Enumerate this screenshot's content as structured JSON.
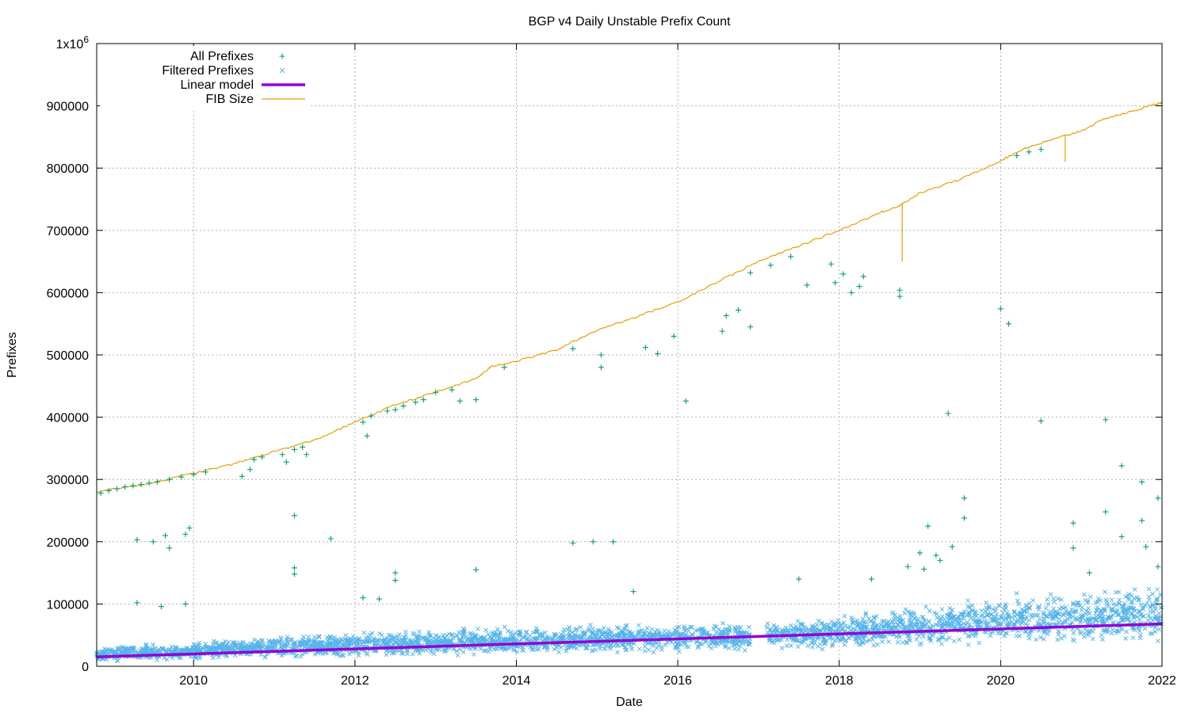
{
  "chart_data": {
    "type": "scatter",
    "title": "BGP v4 Daily Unstable Prefix Count",
    "xlabel": "Date",
    "ylabel": "Prefixes",
    "xlim": [
      2008.8,
      2022.0
    ],
    "ylim": [
      0,
      1000000
    ],
    "x_ticks": [
      2010,
      2012,
      2014,
      2016,
      2018,
      2020,
      2022
    ],
    "x_tick_labels": [
      "2010",
      "2012",
      "2014",
      "2016",
      "2018",
      "2020",
      "2022"
    ],
    "y_ticks": [
      0,
      100000,
      200000,
      300000,
      400000,
      500000,
      600000,
      700000,
      800000,
      900000,
      1000000
    ],
    "y_tick_labels": [
      "0",
      "100000",
      "200000",
      "300000",
      "400000",
      "500000",
      "600000",
      "700000",
      "800000",
      "900000",
      "1x10^6"
    ],
    "grid": true,
    "legend_position": "top-left",
    "series": [
      {
        "name": "All Prefixes",
        "kind": "scatter",
        "marker": "plus",
        "color": "#009e73",
        "points": [
          [
            2008.85,
            278000
          ],
          [
            2008.95,
            282000
          ],
          [
            2009.05,
            285000
          ],
          [
            2009.15,
            288000
          ],
          [
            2009.25,
            290000
          ],
          [
            2009.35,
            292000
          ],
          [
            2009.45,
            294000
          ],
          [
            2009.55,
            296000
          ],
          [
            2009.7,
            300000
          ],
          [
            2009.85,
            304000
          ],
          [
            2010.0,
            308000
          ],
          [
            2010.15,
            312000
          ],
          [
            2010.6,
            305000
          ],
          [
            2010.7,
            316000
          ],
          [
            2010.75,
            332000
          ],
          [
            2010.85,
            336000
          ],
          [
            2011.1,
            340000
          ],
          [
            2011.15,
            328000
          ],
          [
            2011.25,
            348000
          ],
          [
            2011.35,
            352000
          ],
          [
            2011.4,
            340000
          ],
          [
            2012.1,
            392000
          ],
          [
            2012.15,
            370000
          ],
          [
            2012.2,
            402000
          ],
          [
            2012.4,
            410000
          ],
          [
            2012.5,
            412000
          ],
          [
            2012.6,
            418000
          ],
          [
            2012.75,
            424000
          ],
          [
            2012.85,
            428000
          ],
          [
            2013.0,
            440000
          ],
          [
            2013.2,
            444000
          ],
          [
            2013.3,
            426000
          ],
          [
            2013.5,
            428000
          ],
          [
            2013.85,
            480000
          ],
          [
            2014.7,
            510000
          ],
          [
            2015.05,
            500000
          ],
          [
            2015.05,
            480000
          ],
          [
            2015.6,
            512000
          ],
          [
            2015.75,
            502000
          ],
          [
            2015.95,
            530000
          ],
          [
            2016.1,
            426000
          ],
          [
            2016.55,
            538000
          ],
          [
            2016.6,
            563000
          ],
          [
            2016.75,
            572000
          ],
          [
            2016.9,
            545000
          ],
          [
            2016.9,
            632000
          ],
          [
            2017.15,
            644000
          ],
          [
            2017.4,
            658000
          ],
          [
            2017.6,
            612000
          ],
          [
            2017.9,
            646000
          ],
          [
            2017.95,
            616000
          ],
          [
            2018.05,
            630000
          ],
          [
            2018.15,
            600000
          ],
          [
            2018.25,
            610000
          ],
          [
            2018.3,
            626000
          ],
          [
            2018.75,
            604000
          ],
          [
            2018.75,
            594000
          ],
          [
            2020.0,
            574000
          ],
          [
            2020.1,
            550000
          ],
          [
            2020.2,
            820000
          ],
          [
            2020.35,
            826000
          ],
          [
            2020.5,
            830000
          ],
          [
            2009.3,
            203000
          ],
          [
            2009.5,
            200000
          ],
          [
            2009.65,
            210000
          ],
          [
            2009.7,
            190000
          ],
          [
            2009.9,
            212000
          ],
          [
            2009.95,
            222000
          ],
          [
            2011.25,
            242000
          ],
          [
            2011.25,
            158000
          ],
          [
            2011.25,
            148000
          ],
          [
            2011.7,
            205000
          ],
          [
            2012.5,
            150000
          ],
          [
            2012.5,
            138000
          ],
          [
            2013.5,
            155000
          ],
          [
            2014.7,
            198000
          ],
          [
            2014.95,
            200000
          ],
          [
            2015.2,
            200000
          ],
          [
            2015.45,
            120000
          ],
          [
            2017.5,
            140000
          ],
          [
            2018.4,
            140000
          ],
          [
            2019.1,
            225000
          ],
          [
            2019.2,
            178000
          ],
          [
            2019.25,
            170000
          ],
          [
            2019.35,
            406000
          ],
          [
            2019.4,
            192000
          ],
          [
            2019.55,
            270000
          ],
          [
            2019.55,
            238000
          ],
          [
            2020.5,
            394000
          ],
          [
            2020.9,
            230000
          ],
          [
            2021.3,
            396000
          ],
          [
            2021.3,
            248000
          ],
          [
            2021.5,
            322000
          ],
          [
            2021.5,
            208000
          ],
          [
            2021.75,
            296000
          ],
          [
            2021.75,
            234000
          ],
          [
            2021.8,
            192000
          ],
          [
            2021.95,
            270000
          ],
          [
            2021.95,
            160000
          ],
          [
            2009.3,
            102000
          ],
          [
            2009.6,
            96000
          ],
          [
            2009.9,
            100000
          ],
          [
            2012.1,
            110000
          ],
          [
            2012.3,
            108000
          ],
          [
            2018.85,
            160000
          ],
          [
            2019.0,
            182000
          ],
          [
            2019.05,
            156000
          ],
          [
            2020.9,
            190000
          ],
          [
            2021.1,
            150000
          ]
        ]
      },
      {
        "name": "Filtered Prefixes",
        "kind": "scatter_band",
        "marker": "cross",
        "color": "#56b4e9",
        "band": [
          [
            2008.8,
            8000,
            30000
          ],
          [
            2010.0,
            10000,
            40000
          ],
          [
            2011.0,
            12000,
            48000
          ],
          [
            2012.0,
            14000,
            55000
          ],
          [
            2013.0,
            16000,
            60000
          ],
          [
            2014.0,
            18000,
            64000
          ],
          [
            2015.0,
            20000,
            68000
          ],
          [
            2016.0,
            22000,
            70000
          ],
          [
            2016.9,
            24000,
            72000
          ],
          [
            2017.1,
            26000,
            74000
          ],
          [
            2018.0,
            28000,
            80000
          ],
          [
            2019.0,
            30000,
            100000
          ],
          [
            2020.0,
            32000,
            115000
          ],
          [
            2021.0,
            34000,
            125000
          ],
          [
            2022.0,
            36000,
            130000
          ]
        ],
        "gap": [
          2016.9,
          2017.1
        ]
      },
      {
        "name": "Linear model",
        "kind": "line",
        "color": "#9400d3",
        "points": [
          [
            2008.8,
            15000
          ],
          [
            2022.0,
            68000
          ]
        ]
      },
      {
        "name": "FIB Size",
        "kind": "line",
        "color": "#e69f00",
        "points": [
          [
            2008.8,
            280000
          ],
          [
            2009.5,
            295000
          ],
          [
            2010.0,
            310000
          ],
          [
            2010.5,
            325000
          ],
          [
            2011.0,
            345000
          ],
          [
            2011.5,
            363000
          ],
          [
            2012.0,
            392000
          ],
          [
            2012.5,
            420000
          ],
          [
            2013.0,
            440000
          ],
          [
            2013.5,
            462000
          ],
          [
            2013.7,
            482000
          ],
          [
            2014.0,
            490000
          ],
          [
            2014.5,
            508000
          ],
          [
            2015.0,
            540000
          ],
          [
            2015.5,
            562000
          ],
          [
            2016.0,
            585000
          ],
          [
            2016.5,
            618000
          ],
          [
            2017.0,
            650000
          ],
          [
            2017.5,
            675000
          ],
          [
            2018.0,
            700000
          ],
          [
            2018.5,
            728000
          ],
          [
            2018.75,
            740000
          ],
          [
            2019.0,
            760000
          ],
          [
            2019.5,
            782000
          ],
          [
            2020.0,
            812000
          ],
          [
            2020.3,
            832000
          ],
          [
            2020.5,
            840000
          ],
          [
            2020.7,
            848000
          ],
          [
            2021.0,
            860000
          ],
          [
            2021.3,
            880000
          ],
          [
            2021.6,
            890000
          ],
          [
            2021.9,
            902000
          ],
          [
            2022.0,
            905000
          ]
        ],
        "dips": [
          [
            2018.78,
            650000
          ],
          [
            2020.8,
            810000
          ]
        ]
      }
    ]
  }
}
